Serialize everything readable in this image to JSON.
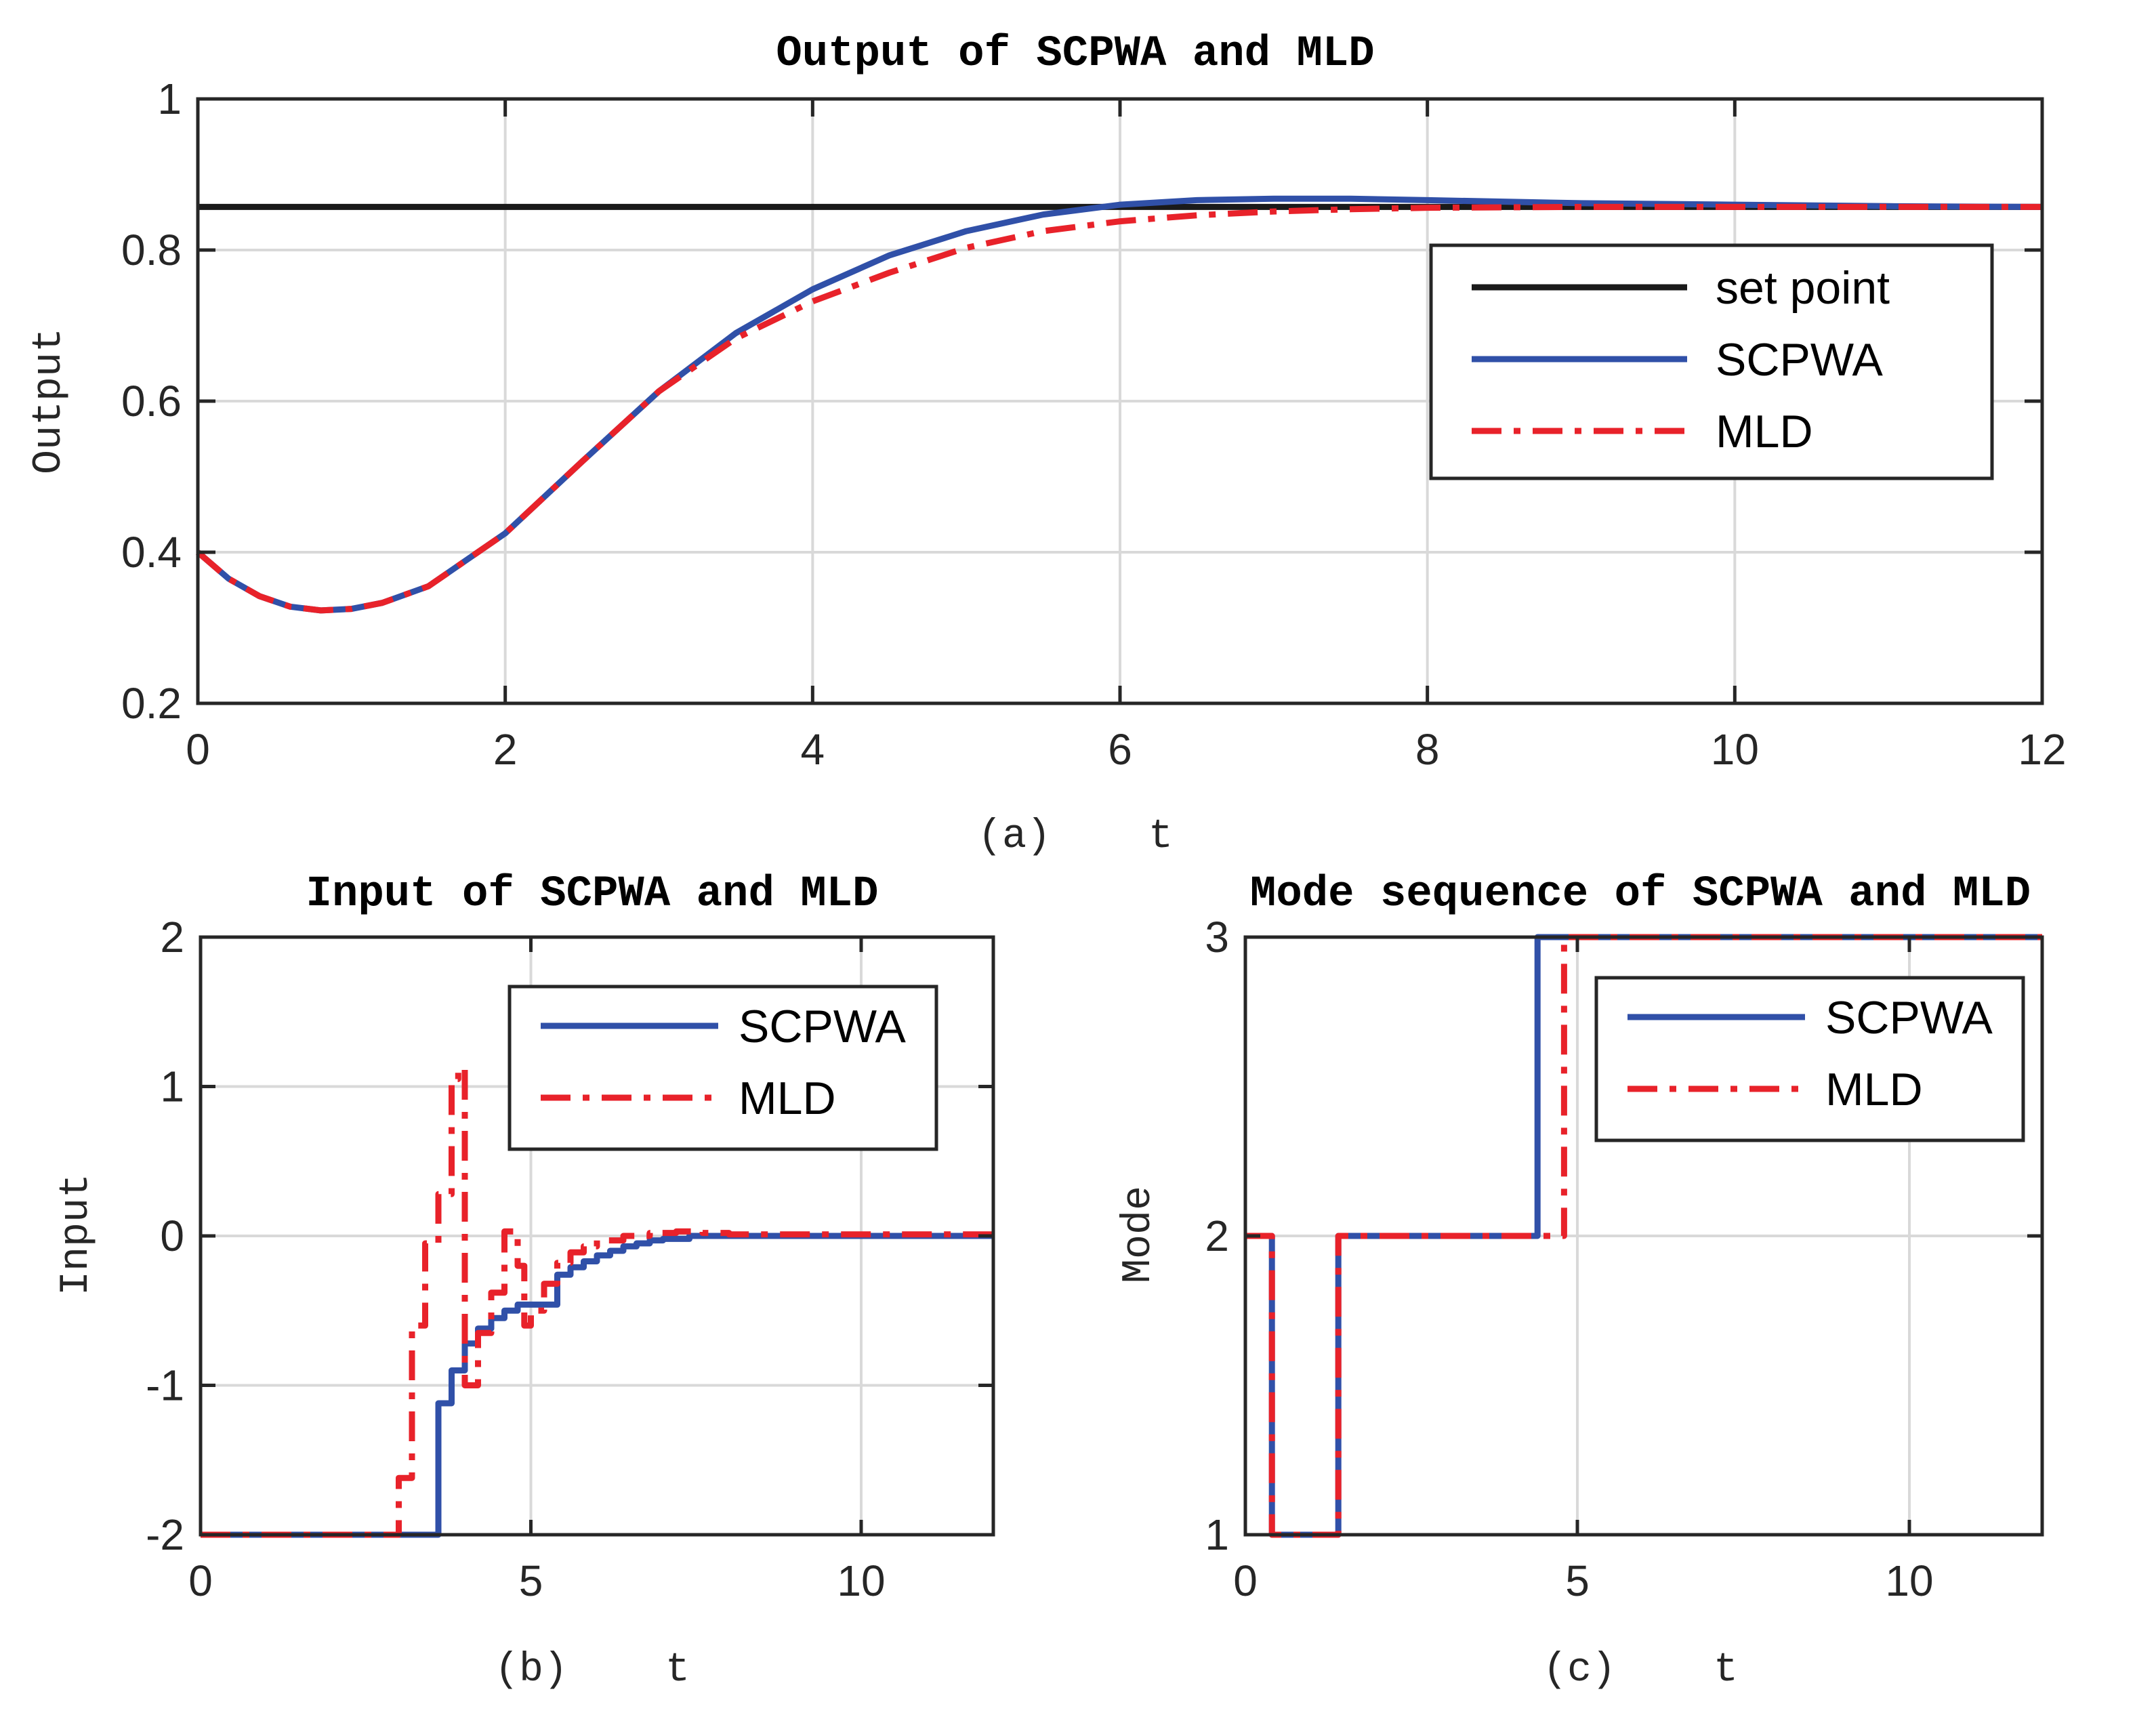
{
  "colors": {
    "setpoint": "#1a1a1a",
    "scpwa": "#3050a8",
    "mld": "#e8222a"
  },
  "chart_data": [
    {
      "id": "a",
      "type": "line",
      "title": "Output of SCPWA and MLD",
      "xlabel": "(a)    t",
      "ylabel": "Output",
      "xlim": [
        0,
        12
      ],
      "ylim": [
        0.2,
        1
      ],
      "xticks": [
        0,
        2,
        4,
        6,
        8,
        10,
        12
      ],
      "xtick_labels": [
        "0",
        "2",
        "4",
        "6",
        "8",
        "10",
        "12"
      ],
      "yticks": [
        0.2,
        0.4,
        0.6,
        0.8,
        1
      ],
      "ytick_labels": [
        "0.2",
        "0.4",
        "0.6",
        "0.8",
        "1"
      ],
      "grid": true,
      "legend_position": "right",
      "series": [
        {
          "name": "set point",
          "style": "solid",
          "color_key": "setpoint",
          "x": [
            0,
            12
          ],
          "y": [
            0.857,
            0.857
          ]
        },
        {
          "name": "SCPWA",
          "style": "solid",
          "color_key": "scpwa",
          "x": [
            0,
            0.2,
            0.4,
            0.6,
            0.8,
            1.0,
            1.2,
            1.5,
            2.0,
            2.5,
            3.0,
            3.5,
            4.0,
            4.5,
            5.0,
            5.5,
            6.0,
            6.5,
            7.0,
            7.5,
            8.0,
            9.0,
            10.0,
            11.0,
            12.0
          ],
          "y": [
            0.4,
            0.365,
            0.342,
            0.328,
            0.323,
            0.325,
            0.333,
            0.355,
            0.425,
            0.52,
            0.613,
            0.69,
            0.748,
            0.793,
            0.825,
            0.847,
            0.86,
            0.866,
            0.868,
            0.868,
            0.866,
            0.862,
            0.86,
            0.858,
            0.857
          ]
        },
        {
          "name": "MLD",
          "style": "dashdot",
          "color_key": "mld",
          "x": [
            0,
            0.2,
            0.4,
            0.6,
            0.8,
            1.0,
            1.2,
            1.5,
            2.0,
            2.5,
            3.0,
            3.5,
            4.0,
            4.5,
            5.0,
            5.5,
            6.0,
            6.5,
            7.0,
            7.5,
            8.0,
            9.0,
            10.0,
            11.0,
            12.0
          ],
          "y": [
            0.4,
            0.365,
            0.342,
            0.328,
            0.323,
            0.325,
            0.333,
            0.355,
            0.425,
            0.52,
            0.613,
            0.683,
            0.732,
            0.77,
            0.803,
            0.825,
            0.838,
            0.846,
            0.851,
            0.854,
            0.856,
            0.857,
            0.857,
            0.857,
            0.857
          ]
        }
      ]
    },
    {
      "id": "b",
      "type": "line",
      "title": "Input of SCPWA and MLD",
      "xlabel": "(b)    t",
      "ylabel": "Input",
      "xlim": [
        0,
        12
      ],
      "ylim": [
        -2,
        2
      ],
      "xticks": [
        0,
        5,
        10
      ],
      "xtick_labels": [
        "0",
        "5",
        "10"
      ],
      "yticks": [
        -2,
        -1,
        0,
        1,
        2
      ],
      "ytick_labels": [
        "-2",
        "-1",
        "0",
        "1",
        "2"
      ],
      "grid": true,
      "legend_position": "top-right",
      "series": [
        {
          "name": "SCPWA",
          "style": "solid",
          "color_key": "scpwa",
          "step": true,
          "x": [
            0,
            3.6,
            3.8,
            4.0,
            4.2,
            4.4,
            4.6,
            4.8,
            5.4,
            5.6,
            5.8,
            6.0,
            6.2,
            6.4,
            6.6,
            6.8,
            7.0,
            7.4,
            8.0,
            12.0
          ],
          "y": [
            -2.0,
            -1.12,
            -0.9,
            -0.72,
            -0.62,
            -0.55,
            -0.5,
            -0.46,
            -0.26,
            -0.21,
            -0.17,
            -0.13,
            -0.1,
            -0.07,
            -0.05,
            -0.03,
            -0.02,
            0.0,
            0.0,
            0.0
          ]
        },
        {
          "name": "MLD",
          "style": "dashdot",
          "color_key": "mld",
          "step": true,
          "x": [
            0,
            3.0,
            3.2,
            3.4,
            3.6,
            3.8,
            3.9,
            4.0,
            4.2,
            4.4,
            4.6,
            4.8,
            4.9,
            5.0,
            5.2,
            5.4,
            5.6,
            5.8,
            6.0,
            6.4,
            6.8,
            7.2,
            7.6,
            8.0,
            12.0
          ],
          "y": [
            -2.0,
            -1.62,
            -0.6,
            -0.05,
            0.28,
            1.05,
            1.12,
            -1.0,
            -0.65,
            -0.38,
            0.03,
            -0.2,
            -0.6,
            -0.5,
            -0.32,
            -0.18,
            -0.11,
            -0.07,
            -0.03,
            0.0,
            0.02,
            0.03,
            0.02,
            0.01,
            0.0
          ]
        }
      ]
    },
    {
      "id": "c",
      "type": "line",
      "title": "Mode sequence of SCPWA and MLD",
      "xlabel": "(c)    t",
      "ylabel": "Mode",
      "xlim": [
        0,
        12
      ],
      "ylim": [
        1,
        3
      ],
      "xticks": [
        0,
        5,
        10
      ],
      "xtick_labels": [
        "0",
        "5",
        "10"
      ],
      "yticks": [
        1,
        2,
        3
      ],
      "ytick_labels": [
        "1",
        "2",
        "3"
      ],
      "grid": true,
      "legend_position": "top-right",
      "series": [
        {
          "name": "SCPWA",
          "style": "solid",
          "color_key": "scpwa",
          "step": true,
          "x": [
            0,
            0.4,
            1.4,
            4.4,
            12.0
          ],
          "y": [
            2,
            1,
            2,
            3,
            3
          ]
        },
        {
          "name": "MLD",
          "style": "dashdot",
          "color_key": "mld",
          "step": true,
          "x": [
            0,
            0.4,
            1.4,
            4.8,
            12.0
          ],
          "y": [
            2,
            1,
            2,
            3,
            3
          ]
        }
      ]
    }
  ]
}
